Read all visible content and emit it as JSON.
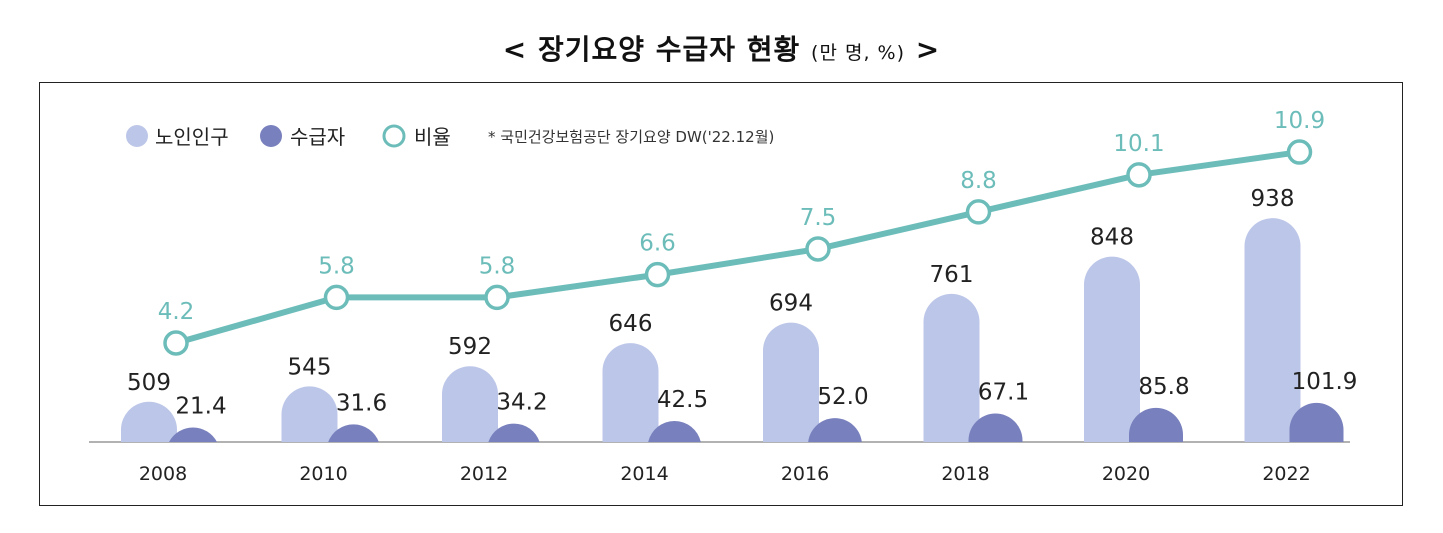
{
  "title": "< 장기요양 수급자 현황",
  "title_unit": "(만 명, %)",
  "title_end": ">",
  "legend": {
    "items": [
      "노인인구",
      "수급자",
      "비율"
    ],
    "note": "* 국민건강보험공단 장기요양 DW('22.12월)"
  },
  "colors": {
    "elderly": "#bcc6e8",
    "recipients": "#7880bd",
    "ratio": "#6cbdba",
    "axis": "#999999",
    "text": "#222222"
  },
  "chart_data": {
    "type": "bar",
    "title": "장기요양 수급자 현황",
    "units": "만 명, %",
    "categories": [
      "2008",
      "2010",
      "2012",
      "2014",
      "2016",
      "2018",
      "2020",
      "2022"
    ],
    "series": [
      {
        "name": "노인인구",
        "type": "bar",
        "values": [
          509,
          545,
          592,
          646,
          694,
          761,
          848,
          938
        ],
        "labels": [
          "509",
          "545",
          "592",
          "646",
          "694",
          "761",
          "848",
          "938"
        ]
      },
      {
        "name": "수급자",
        "type": "bar",
        "values": [
          21.4,
          31.6,
          34.2,
          42.5,
          52.0,
          67.1,
          85.8,
          101.9
        ],
        "labels": [
          "21.4",
          "31.6",
          "34.2",
          "42.5",
          "52.0",
          "67.1",
          "85.8",
          "101.9"
        ]
      },
      {
        "name": "비율",
        "type": "line",
        "values": [
          4.2,
          5.8,
          5.8,
          6.6,
          7.5,
          8.8,
          10.1,
          10.9
        ],
        "labels": [
          "4.2",
          "5.8",
          "5.8",
          "6.6",
          "7.5",
          "8.8",
          "10.1",
          "10.9"
        ]
      }
    ],
    "xlabel": "",
    "ylabel": "",
    "legend_position": "top-left"
  }
}
